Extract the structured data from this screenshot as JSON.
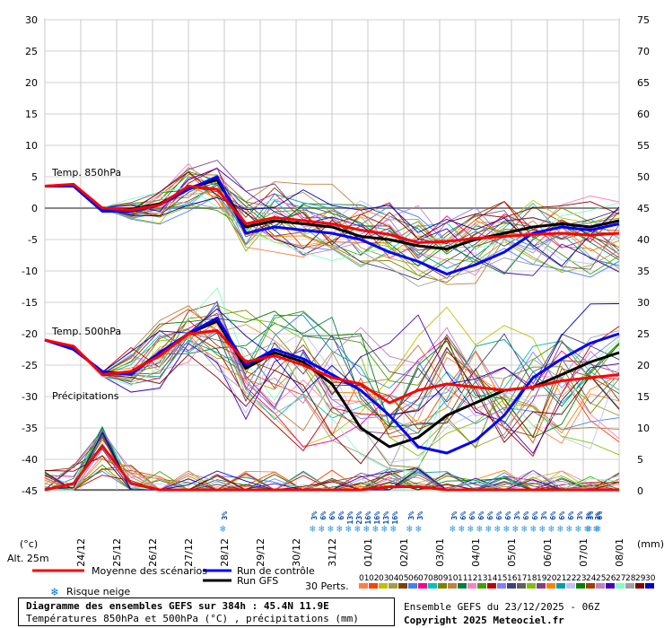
{
  "chart_data": {
    "type": "line",
    "left_axis": {
      "unit_label": "(°c)",
      "ticks": [
        30,
        25,
        20,
        15,
        10,
        5,
        0,
        -5,
        -10,
        -15,
        -20,
        -25,
        -30,
        -35,
        -40,
        -45
      ]
    },
    "right_axis": {
      "unit_label": "(mm)",
      "ticks": [
        75,
        70,
        65,
        60,
        55,
        50,
        45,
        40,
        35,
        30,
        25,
        20,
        15,
        10,
        5,
        0
      ]
    },
    "x_axis": {
      "labels": [
        "24/12",
        "25/12",
        "26/12",
        "27/12",
        "28/12",
        "29/12",
        "30/12",
        "31/12",
        "01/01",
        "02/01",
        "03/01",
        "04/01",
        "05/01",
        "06/01",
        "07/01",
        "08/01"
      ]
    },
    "section_labels": {
      "t850": "Temp. 850hPa",
      "t500": "Temp. 500hPa",
      "precip": "Précipitations"
    },
    "altitude": "Alt. 25m",
    "series": [
      {
        "name": "Moyenne des scénarios",
        "color": "#ff0000",
        "t850": [
          3.5,
          3.8,
          0.0,
          -0.3,
          0.5,
          3.5,
          3.0,
          -2.5,
          -1.5,
          -2.0,
          -2.5,
          -3.5,
          -4.2,
          -5.5,
          -5.3,
          -4.8,
          -4.5,
          -4.2,
          -4.0,
          -4.3,
          -4.0
        ],
        "t500": [
          -21.0,
          -22.0,
          -26.5,
          -26.0,
          -23.5,
          -20.0,
          -19.5,
          -24.5,
          -23.5,
          -25.0,
          -27.0,
          -28.0,
          -31.0,
          -29.0,
          -28.0,
          -28.5,
          -29.0,
          -28.5,
          -27.5,
          -27.0,
          -26.5
        ]
      },
      {
        "name": "Run de contrôle",
        "color": "#0000ff",
        "t850": [
          3.5,
          3.5,
          -0.5,
          -0.5,
          0.5,
          3.0,
          5.0,
          -4.0,
          -3.0,
          -3.5,
          -4.0,
          -5.0,
          -7.0,
          -8.5,
          -10.5,
          -9.0,
          -7.0,
          -4.0,
          -3.0,
          -3.5,
          -2.5
        ],
        "t500": [
          -21.0,
          -22.5,
          -26.0,
          -26.5,
          -23.0,
          -20.0,
          -17.5,
          -25.0,
          -22.5,
          -24.0,
          -26.5,
          -29.0,
          -33.0,
          -38.0,
          -39.0,
          -37.0,
          -33.0,
          -27.0,
          -24.0,
          -21.5,
          -20.0
        ]
      },
      {
        "name": "Run GFS",
        "color": "#000000",
        "t850": [
          3.5,
          3.7,
          -0.2,
          -0.2,
          0.7,
          3.2,
          4.5,
          -3.0,
          -2.0,
          -2.5,
          -3.0,
          -4.5,
          -5.0,
          -6.0,
          -6.5,
          -5.0,
          -4.0,
          -3.0,
          -2.5,
          -3.0,
          -2.0
        ],
        "t500": [
          -21.0,
          -22.2,
          -26.3,
          -26.2,
          -23.2,
          -20.0,
          -18.0,
          -25.5,
          -23.0,
          -24.5,
          -28.0,
          -35.0,
          -38.0,
          -36.5,
          -33.0,
          -31.0,
          -29.0,
          -28.5,
          -26.5,
          -24.5,
          -23.0
        ]
      }
    ],
    "mean_precip_mm": [
      0,
      1,
      7,
      1,
      0,
      0,
      0,
      0,
      0,
      0,
      0,
      0,
      0.5,
      0.5,
      0,
      0,
      0,
      0,
      0,
      0,
      0
    ],
    "snow_risk_pct": [
      {
        "date_index": 5.0,
        "labels": [
          "3%"
        ]
      },
      {
        "date_index": 7.5,
        "labels": [
          "3%",
          "6%",
          "6%",
          "6%",
          "13%",
          "23%",
          "16%",
          "16%",
          "13%",
          "16%"
        ]
      },
      {
        "date_index": 10.2,
        "labels": [
          "3%",
          "3%"
        ]
      },
      {
        "date_index": 11.4,
        "labels": [
          "3%",
          "6%",
          "6%",
          "6%",
          "6%",
          "6%",
          "6%",
          "3%",
          "6%",
          "6%",
          "3%",
          "6%",
          "6%",
          "6%",
          "3%",
          "3%",
          "3%"
        ]
      },
      {
        "date_index": 15.2,
        "labels": [
          "3%",
          "6%"
        ]
      }
    ],
    "ensemble_members": 30,
    "grid": true,
    "zero_line": true
  },
  "legend": {
    "mean": "Moyenne des scénarios",
    "control": "Run de contrôle",
    "gfs": "Run GFS",
    "snow": "Risque neige",
    "perts": "30 Perts.",
    "perts_numbers": [
      "01",
      "02",
      "03",
      "04",
      "05",
      "06",
      "07",
      "08",
      "09",
      "10",
      "11",
      "12",
      "13",
      "14",
      "15",
      "16",
      "17",
      "18",
      "19",
      "20",
      "21",
      "22",
      "23",
      "24",
      "25",
      "26",
      "27",
      "28",
      "29",
      "30"
    ],
    "perts_colors": [
      "#ff8040",
      "#ff4000",
      "#c0c000",
      "#a0a040",
      "#804000",
      "#4080ff",
      "#ff0080",
      "#00c0c0",
      "#808000",
      "#c08040",
      "#008040",
      "#ff80c0",
      "#40a000",
      "#c00000",
      "#8080ff",
      "#404080",
      "#606060",
      "#80c000",
      "#804080",
      "#ff8000",
      "#00a0a0",
      "#c0c0ff",
      "#008000",
      "#a04000",
      "#c080c0",
      "#4000c0",
      "#80ffc0",
      "#a0a0a0",
      "#800000",
      "#0000c0"
    ]
  },
  "footer": {
    "title": "Diagramme des ensembles GEFS sur 384h : 45.4N 11.9E",
    "subtitle": "Températures 850hPa et 500hPa (°C) , précipitations (mm)",
    "run": "Ensemble GEFS du 23/12/2025 - 06Z",
    "copyright": "Copyright 2025 Meteociel.fr"
  }
}
